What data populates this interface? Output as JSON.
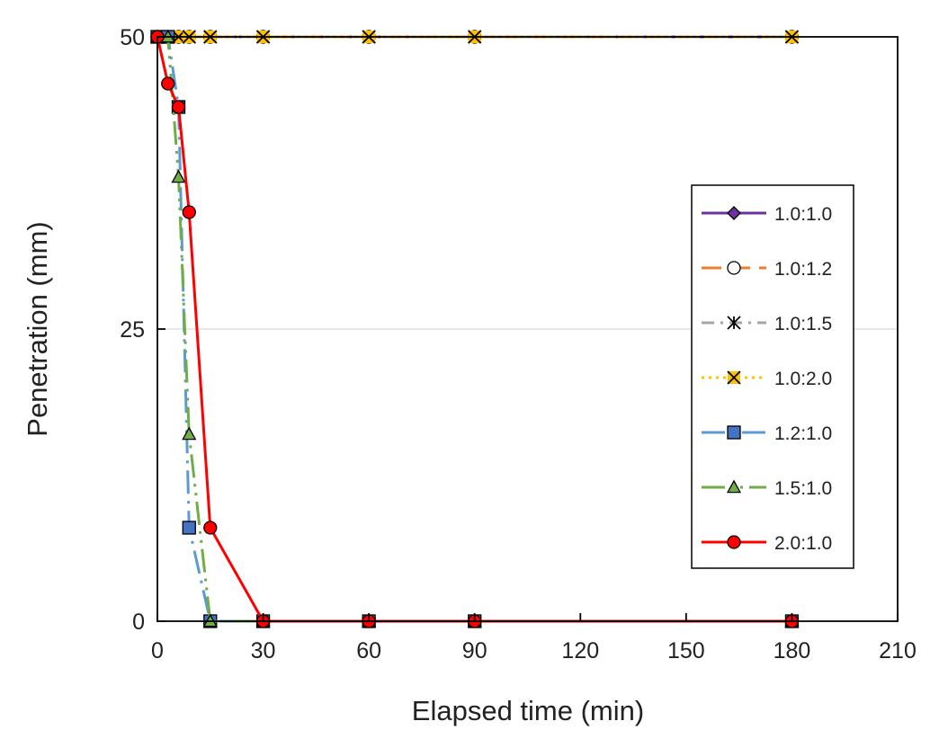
{
  "chart_data": {
    "type": "line",
    "title": "",
    "xlabel": "Elapsed time (min)",
    "ylabel": "Penetration (mm)",
    "xlim": [
      0,
      210
    ],
    "ylim": [
      0,
      50
    ],
    "xticks": [
      0,
      30,
      60,
      90,
      120,
      150,
      180,
      210
    ],
    "yticks": [
      0,
      25,
      50
    ],
    "grid": "horizontal at 25",
    "legend_position": "right",
    "series": [
      {
        "name": "1.0:1.0",
        "color": "#7030A0",
        "dash": "solid",
        "marker": "diamond",
        "marker_fill": "#7030A0",
        "x": [
          0,
          3,
          6,
          9,
          15,
          30,
          60,
          90,
          180
        ],
        "y": [
          50,
          50,
          50,
          50,
          50,
          50,
          50,
          50,
          50
        ]
      },
      {
        "name": "1.0:1.2",
        "color": "#ED7D31",
        "dash": "long-dash",
        "marker": "circle",
        "marker_fill": "#ffffff",
        "x": [
          0,
          3,
          6,
          9,
          15,
          30,
          60,
          90,
          180
        ],
        "y": [
          50,
          50,
          50,
          50,
          50,
          50,
          50,
          50,
          50
        ]
      },
      {
        "name": "1.0:1.5",
        "color": "#A5A5A5",
        "dash": "dash-dot",
        "marker": "asterisk",
        "marker_fill": "#A5A5A5",
        "x": [
          0,
          3,
          6,
          9,
          15,
          30,
          60,
          90,
          180
        ],
        "y": [
          50,
          50,
          50,
          50,
          50,
          50,
          50,
          50,
          50
        ]
      },
      {
        "name": "1.0:2.0",
        "color": "#FFC000",
        "dash": "dotted",
        "marker": "x",
        "marker_fill": "#FFC000",
        "x": [
          0,
          3,
          6,
          9,
          15,
          30,
          60,
          90,
          180
        ],
        "y": [
          50,
          50,
          50,
          50,
          50,
          50,
          50,
          50,
          50
        ]
      },
      {
        "name": "1.2:1.0",
        "color": "#5B9BD5",
        "dash": "long-dash-dot",
        "marker": "square",
        "marker_fill": "#4472C4",
        "x": [
          0,
          3,
          6,
          9,
          15,
          30,
          60,
          90,
          180
        ],
        "y": [
          50,
          50,
          44,
          8,
          0,
          0,
          0,
          0,
          0
        ]
      },
      {
        "name": "1.5:1.0",
        "color": "#70AD47",
        "dash": "long-dash-dot-dot",
        "marker": "triangle",
        "marker_fill": "#70AD47",
        "x": [
          0,
          3,
          6,
          9,
          15,
          30,
          60,
          90,
          180
        ],
        "y": [
          50,
          50,
          38,
          16,
          0,
          0,
          0,
          0,
          0
        ]
      },
      {
        "name": "2.0:1.0",
        "color": "#FF0000",
        "dash": "solid",
        "marker": "circle",
        "marker_fill": "#FF0000",
        "x": [
          0,
          3,
          6,
          9,
          15,
          30,
          60,
          90,
          180
        ],
        "y": [
          50,
          46,
          44,
          35,
          8,
          0,
          0,
          0,
          0
        ]
      }
    ]
  }
}
